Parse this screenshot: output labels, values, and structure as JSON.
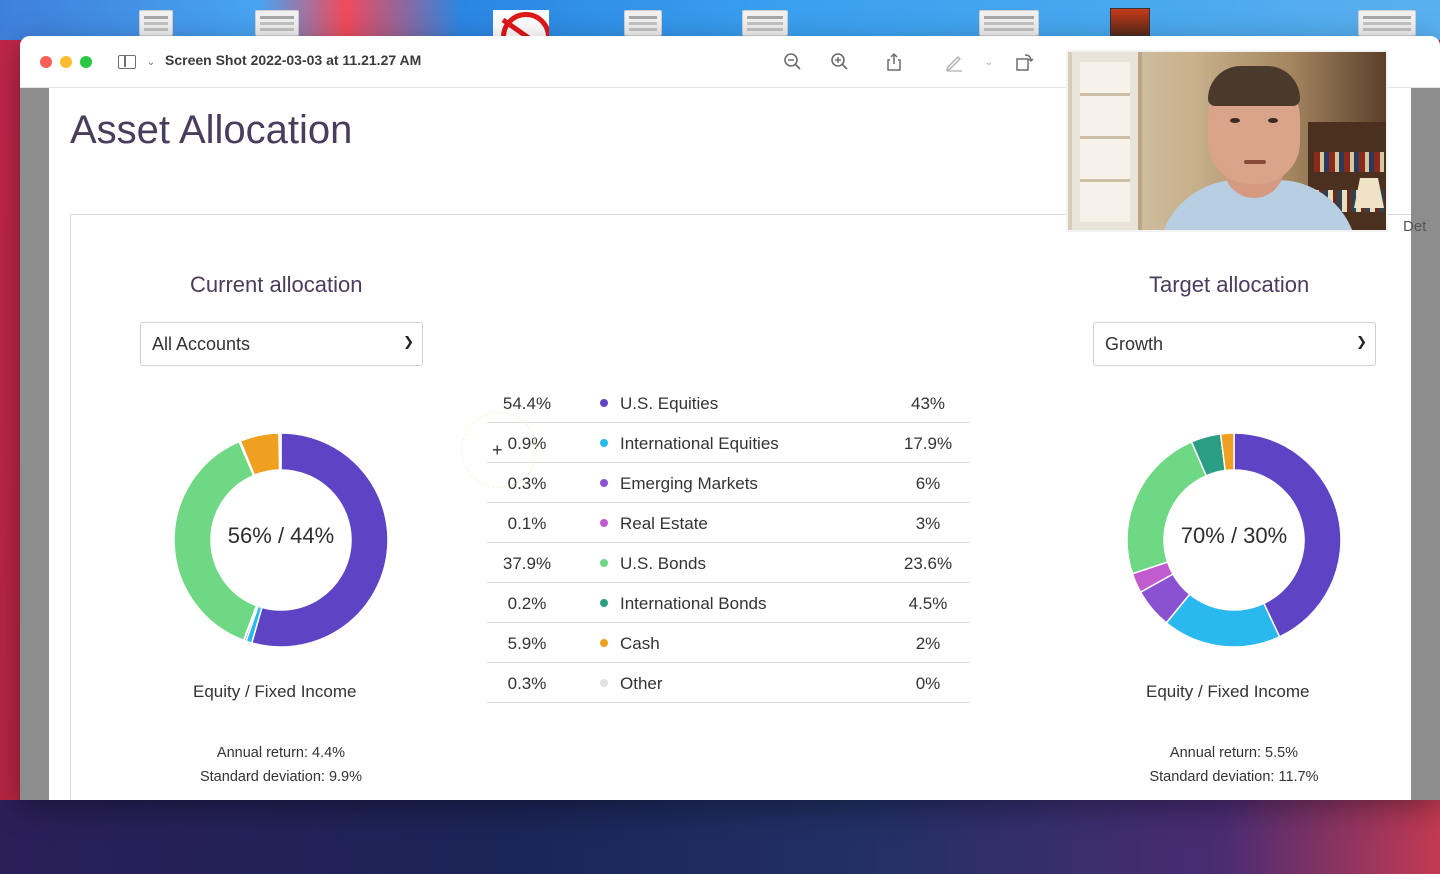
{
  "window": {
    "title": "Screen Shot 2022-03-03 at 11.21.27 AM"
  },
  "page": {
    "title": "Asset Allocation",
    "partial_tab_text": "Det"
  },
  "current": {
    "heading": "Current allocation",
    "select_value": "All Accounts",
    "donut_center": "56% / 44%",
    "donut_label": "Equity / Fixed Income",
    "annual_return": "Annual return: 4.4%",
    "std_dev": "Standard deviation: 9.9%"
  },
  "target": {
    "heading": "Target allocation",
    "select_value": "Growth",
    "donut_center": "70% / 30%",
    "donut_label": "Equity / Fixed Income",
    "annual_return": "Annual return: 5.5%",
    "std_dev": "Standard deviation: 11.7%"
  },
  "rows": [
    {
      "current": "54.4%",
      "name": "U.S. Equities",
      "target": "43%",
      "color": "#5e44c4"
    },
    {
      "current": "0.9%",
      "name": "International Equities",
      "target": "17.9%",
      "color": "#29b9ef"
    },
    {
      "current": "0.3%",
      "name": "Emerging Markets",
      "target": "6%",
      "color": "#8a52d0"
    },
    {
      "current": "0.1%",
      "name": "Real Estate",
      "target": "3%",
      "color": "#c15ccf"
    },
    {
      "current": "37.9%",
      "name": "U.S. Bonds",
      "target": "23.6%",
      "color": "#6ed885"
    },
    {
      "current": "0.2%",
      "name": "International Bonds",
      "target": "4.5%",
      "color": "#2a9d84"
    },
    {
      "current": "5.9%",
      "name": "Cash",
      "target": "2%",
      "color": "#f0a020"
    },
    {
      "current": "0.3%",
      "name": "Other",
      "target": "0%",
      "color": "#e2e2e2"
    }
  ],
  "chart_data": [
    {
      "type": "pie",
      "categories": [
        "U.S. Equities",
        "International Equities",
        "Emerging Markets",
        "Real Estate",
        "U.S. Bonds",
        "International Bonds",
        "Cash",
        "Other"
      ],
      "values": [
        54.4,
        0.9,
        0.3,
        0.1,
        37.9,
        0.2,
        5.9,
        0.3
      ],
      "title": "Current allocation"
    },
    {
      "type": "pie",
      "categories": [
        "U.S. Equities",
        "International Equities",
        "Emerging Markets",
        "Real Estate",
        "U.S. Bonds",
        "International Bonds",
        "Cash",
        "Other"
      ],
      "values": [
        43,
        17.9,
        6,
        3,
        23.6,
        4.5,
        2,
        0
      ],
      "title": "Target allocation"
    }
  ],
  "icons": {
    "zoom_out": "zoom-out-icon",
    "zoom_in": "zoom-in-icon",
    "share": "share-icon",
    "markup": "pencil-icon",
    "rotate": "rotate-icon"
  }
}
